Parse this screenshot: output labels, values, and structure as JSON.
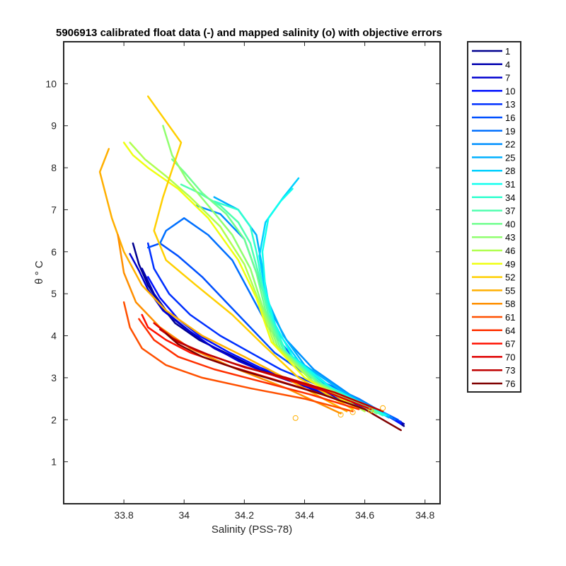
{
  "chart_data": {
    "type": "line",
    "title": "5906913 calibrated float data (-) and mapped salinity (o) with objective errors",
    "xlabel": "Salinity (PSS-78)",
    "ylabel": "θ ° C",
    "xlim": [
      33.6,
      34.85
    ],
    "ylim": [
      0,
      11
    ],
    "xticks": [
      33.8,
      34.0,
      34.2,
      34.4,
      34.6,
      34.8
    ],
    "xtick_labels": [
      "33.8",
      "34",
      "34.2",
      "34.4",
      "34.6",
      "34.8"
    ],
    "yticks": [
      1,
      2,
      3,
      4,
      5,
      6,
      7,
      8,
      9,
      10
    ],
    "ytick_labels": [
      "1",
      "2",
      "3",
      "4",
      "5",
      "6",
      "7",
      "8",
      "9",
      "10"
    ],
    "grid": false,
    "legend_position": "outside-right",
    "legend": [
      "1",
      "4",
      "7",
      "10",
      "13",
      "16",
      "19",
      "22",
      "25",
      "28",
      "31",
      "34",
      "37",
      "40",
      "43",
      "46",
      "49",
      "52",
      "55",
      "58",
      "61",
      "64",
      "67",
      "70",
      "73",
      "76"
    ],
    "legend_colors": [
      "#00008f",
      "#0000b0",
      "#0000d0",
      "#0010ff",
      "#0030ff",
      "#0050ff",
      "#0070ff",
      "#0090ff",
      "#00b0ff",
      "#00d0ff",
      "#10ffef",
      "#30ffcf",
      "#50ffaf",
      "#70ff8f",
      "#90ff6f",
      "#b0ff4f",
      "#efff10",
      "#ffcf00",
      "#ffaf00",
      "#ff8f00",
      "#ff5000",
      "#ff3000",
      "#ff1000",
      "#df0000",
      "#bf0000",
      "#800000"
    ],
    "series": [
      {
        "name": "1",
        "x": [
          34.73,
          34.7,
          34.64,
          34.55,
          34.45,
          34.35,
          34.25,
          34.15,
          34.05,
          33.97,
          33.92,
          33.88,
          33.85,
          33.83
        ],
        "y": [
          1.85,
          2.0,
          2.22,
          2.45,
          2.65,
          2.95,
          3.2,
          3.55,
          3.9,
          4.3,
          4.75,
          5.2,
          5.7,
          6.2
        ]
      },
      {
        "name": "4",
        "x": [
          34.73,
          34.68,
          34.6,
          34.5,
          34.4,
          34.3,
          34.2,
          34.1,
          34.02,
          33.95,
          33.9,
          33.86
        ],
        "y": [
          1.9,
          2.1,
          2.3,
          2.55,
          2.8,
          3.05,
          3.35,
          3.7,
          4.1,
          4.5,
          5.0,
          5.6
        ]
      },
      {
        "name": "7",
        "x": [
          34.72,
          34.66,
          34.58,
          34.48,
          34.38,
          34.28,
          34.18,
          34.08,
          34.0,
          33.93,
          33.88,
          33.85,
          33.82
        ],
        "y": [
          1.95,
          2.15,
          2.35,
          2.6,
          2.85,
          3.1,
          3.4,
          3.8,
          4.2,
          4.6,
          5.1,
          5.55,
          5.95
        ]
      },
      {
        "name": "10",
        "x": [
          34.72,
          34.65,
          34.55,
          34.45,
          34.35,
          34.25,
          34.15,
          34.05,
          33.98,
          33.92,
          33.88
        ],
        "y": [
          1.9,
          2.2,
          2.45,
          2.7,
          2.95,
          3.25,
          3.6,
          4.0,
          4.4,
          4.9,
          5.4
        ]
      },
      {
        "name": "13",
        "x": [
          34.72,
          34.62,
          34.52,
          34.42,
          34.32,
          34.22,
          34.12,
          34.02,
          33.95,
          33.9,
          33.88
        ],
        "y": [
          1.95,
          2.3,
          2.6,
          2.9,
          3.2,
          3.6,
          4.0,
          4.5,
          5.0,
          5.6,
          6.2
        ]
      },
      {
        "name": "16",
        "x": [
          34.71,
          34.6,
          34.5,
          34.4,
          34.3,
          34.22,
          34.14,
          34.06,
          33.98,
          33.92,
          33.88
        ],
        "y": [
          2.0,
          2.4,
          2.7,
          3.1,
          3.6,
          4.2,
          4.8,
          5.4,
          5.9,
          6.2,
          6.1
        ]
      },
      {
        "name": "19",
        "x": [
          34.7,
          34.58,
          34.46,
          34.36,
          34.28,
          34.22,
          34.16,
          34.08,
          34.0,
          33.94,
          33.92
        ],
        "y": [
          2.0,
          2.5,
          2.9,
          3.5,
          4.2,
          5.0,
          5.8,
          6.4,
          6.8,
          6.5,
          6.2
        ]
      },
      {
        "name": "22",
        "x": [
          34.69,
          34.55,
          34.43,
          34.34,
          34.28,
          34.24,
          34.2,
          34.12,
          34.04
        ],
        "y": [
          2.05,
          2.6,
          3.2,
          3.9,
          4.7,
          5.5,
          6.3,
          6.9,
          7.1
        ]
      },
      {
        "name": "25",
        "x": [
          34.68,
          34.52,
          34.4,
          34.33,
          34.28,
          34.26,
          34.24,
          34.18,
          34.1
        ],
        "y": [
          2.05,
          2.7,
          3.3,
          4.0,
          4.8,
          5.6,
          6.4,
          7.0,
          7.3
        ]
      },
      {
        "name": "28",
        "x": [
          34.68,
          34.5,
          34.38,
          34.31,
          34.27,
          34.25,
          34.27,
          34.33,
          34.38
        ],
        "y": [
          2.1,
          2.7,
          3.4,
          4.1,
          5.0,
          5.9,
          6.7,
          7.3,
          7.75
        ]
      },
      {
        "name": "31",
        "x": [
          34.67,
          34.48,
          34.36,
          34.3,
          34.27,
          34.26,
          34.28,
          34.32,
          34.36
        ],
        "y": [
          2.1,
          2.8,
          3.5,
          4.3,
          5.1,
          6.0,
          6.8,
          7.2,
          7.5
        ]
      },
      {
        "name": "34",
        "x": [
          34.66,
          34.46,
          34.34,
          34.29,
          34.26,
          34.24,
          34.22,
          34.18,
          34.1
        ],
        "y": [
          2.1,
          2.85,
          3.6,
          4.4,
          5.2,
          6.0,
          6.6,
          7.0,
          7.2
        ]
      },
      {
        "name": "37",
        "x": [
          34.65,
          34.45,
          34.33,
          34.28,
          34.25,
          34.22,
          34.18,
          34.12,
          34.05,
          33.99
        ],
        "y": [
          2.15,
          2.85,
          3.65,
          4.5,
          5.4,
          6.2,
          6.7,
          7.1,
          7.4,
          7.6
        ]
      },
      {
        "name": "40",
        "x": [
          34.64,
          34.44,
          34.32,
          34.27,
          34.24,
          34.2,
          34.14,
          34.06,
          34.0,
          33.96
        ],
        "y": [
          2.15,
          2.9,
          3.7,
          4.6,
          5.5,
          6.3,
          6.9,
          7.4,
          7.9,
          8.2
        ]
      },
      {
        "name": "43",
        "x": [
          34.63,
          34.43,
          34.31,
          34.26,
          34.22,
          34.16,
          34.08,
          34.01,
          33.96,
          33.93
        ],
        "y": [
          2.2,
          2.9,
          3.75,
          4.7,
          5.6,
          6.4,
          7.1,
          7.7,
          8.3,
          9.0
        ]
      },
      {
        "name": "46",
        "x": [
          34.6,
          34.42,
          34.3,
          34.25,
          34.2,
          34.12,
          34.02,
          33.94,
          33.87,
          33.82
        ],
        "y": [
          2.2,
          2.95,
          3.8,
          4.8,
          5.7,
          6.6,
          7.3,
          7.8,
          8.2,
          8.6
        ]
      },
      {
        "name": "49",
        "x": [
          34.58,
          34.4,
          34.29,
          34.24,
          34.18,
          34.08,
          33.98,
          33.88,
          33.83,
          33.8
        ],
        "y": [
          2.25,
          3.0,
          3.85,
          4.9,
          5.8,
          6.8,
          7.5,
          8.0,
          8.3,
          8.6
        ]
      },
      {
        "name": "52",
        "x": [
          34.56,
          34.38,
          34.26,
          34.16,
          34.04,
          33.94,
          33.9,
          33.93,
          33.99,
          33.88
        ],
        "y": [
          2.25,
          3.0,
          3.8,
          4.5,
          5.2,
          5.8,
          6.5,
          7.3,
          8.6,
          9.7
        ]
      },
      {
        "name": "55",
        "x": [
          34.54,
          34.36,
          34.2,
          34.06,
          33.94,
          33.86,
          33.8,
          33.76,
          33.72,
          33.75
        ],
        "y": [
          2.2,
          2.9,
          3.5,
          4.0,
          4.6,
          5.2,
          6.0,
          6.8,
          7.9,
          8.45
        ]
      },
      {
        "name": "58",
        "x": [
          34.52,
          34.34,
          34.16,
          34.02,
          33.92,
          33.84,
          33.8,
          33.78
        ],
        "y": [
          2.15,
          2.75,
          3.25,
          3.7,
          4.2,
          4.8,
          5.5,
          6.4
        ]
      },
      {
        "name": "61",
        "x": [
          34.56,
          34.4,
          34.22,
          34.06,
          33.94,
          33.86,
          33.82,
          33.8
        ],
        "y": [
          2.2,
          2.5,
          2.75,
          3.0,
          3.3,
          3.7,
          4.2,
          4.8
        ]
      },
      {
        "name": "64",
        "x": [
          34.58,
          34.42,
          34.26,
          34.1,
          33.98,
          33.9,
          33.85
        ],
        "y": [
          2.25,
          2.6,
          2.9,
          3.2,
          3.5,
          3.9,
          4.4
        ]
      },
      {
        "name": "67",
        "x": [
          34.6,
          34.44,
          34.28,
          34.14,
          34.02,
          33.94,
          33.88,
          33.86
        ],
        "y": [
          2.25,
          2.65,
          3.0,
          3.3,
          3.6,
          3.9,
          4.2,
          4.5
        ]
      },
      {
        "name": "70",
        "x": [
          34.62,
          34.46,
          34.3,
          34.16,
          34.04,
          33.96,
          33.9
        ],
        "y": [
          2.25,
          2.7,
          3.05,
          3.35,
          3.65,
          3.95,
          4.3
        ]
      },
      {
        "name": "73",
        "x": [
          34.66,
          34.5,
          34.34,
          34.2,
          34.08,
          33.98,
          33.92
        ],
        "y": [
          2.2,
          2.65,
          3.0,
          3.25,
          3.55,
          3.85,
          4.15
        ]
      },
      {
        "name": "76",
        "x": [
          34.72,
          34.6,
          34.46,
          34.32,
          34.18,
          34.06,
          33.98,
          33.94
        ],
        "y": [
          1.75,
          2.25,
          2.6,
          2.9,
          3.2,
          3.5,
          3.8,
          4.05
        ]
      }
    ],
    "mapped_points": {
      "color": "#ffaf00",
      "x": [
        34.37,
        34.52,
        34.56,
        34.62,
        34.66
      ],
      "y": [
        2.04,
        2.12,
        2.18,
        2.22,
        2.28
      ]
    }
  }
}
